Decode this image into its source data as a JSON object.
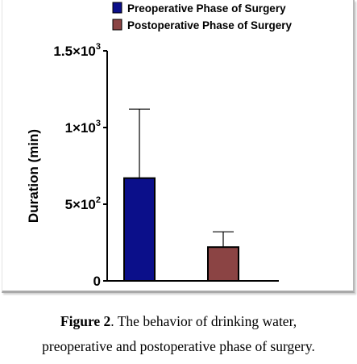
{
  "chart_data": {
    "type": "bar",
    "categories": [
      "Preoperative Phase of Surgery",
      "Postoperative Phase of Surgery"
    ],
    "values": [
      670,
      220
    ],
    "errors": [
      450,
      100
    ],
    "colors": [
      "#0b0f8a",
      "#8b4444"
    ],
    "ylabel": "Duration (min)",
    "ylim": [
      0,
      1500
    ],
    "yticks": [
      {
        "value": 0,
        "base": "0",
        "exp": ""
      },
      {
        "value": 500,
        "base": "5×10",
        "exp": "2"
      },
      {
        "value": 1000,
        "base": "1×10",
        "exp": "3"
      },
      {
        "value": 1500,
        "base": "1.5×10",
        "exp": "3"
      }
    ],
    "legend": [
      {
        "label": "Preoperative Phase of Surgery",
        "color": "#0b0f8a"
      },
      {
        "label": "Postoperative Phase of Surgery",
        "color": "#8b4444"
      }
    ],
    "legend_position": "top-right",
    "grid": false
  },
  "caption": {
    "figure_number": "Figure 2",
    "text_line1": ". The behavior of drinking water,",
    "text_line2": "preoperative and postoperative phase of surgery."
  }
}
